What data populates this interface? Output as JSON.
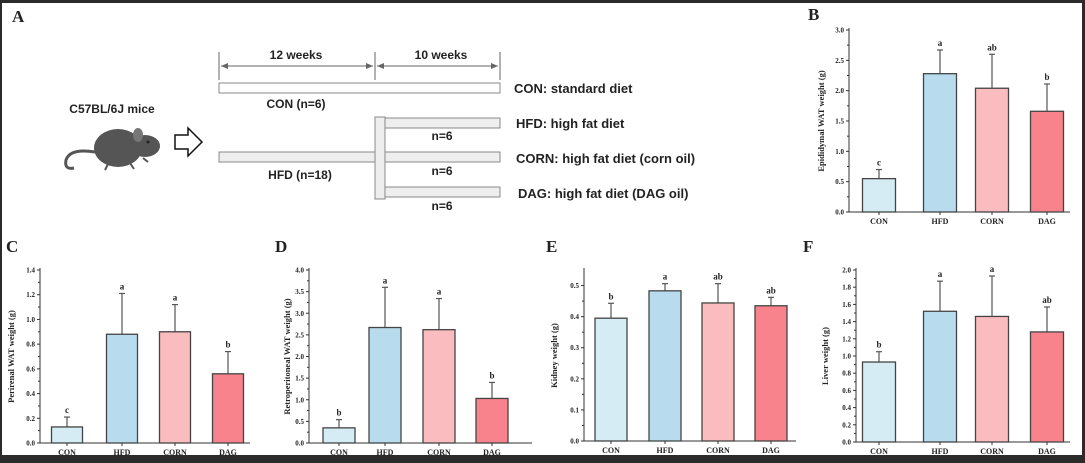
{
  "panel_a": {
    "letter": "A",
    "mice_label": "C57BL/6J mice",
    "period_1": "12 weeks",
    "period_2": "10 weeks",
    "con_group": "CON (n=6)",
    "hfd_group": "HFD (n=18)",
    "branch_n": [
      "n=6",
      "n=6",
      "n=6"
    ],
    "diets": [
      "CON: standard diet",
      "HFD: high fat diet",
      "CORN: high fat diet (corn oil)",
      "DAG: high fat diet (DAG oil)"
    ],
    "icons": [
      "mouse-icon",
      "hollow-arrow-right-icon"
    ]
  },
  "colors": {
    "CON": "#d6ecf5",
    "HFD": "#b8dced",
    "CORN": "#fbbcbf",
    "DAG": "#f8838c",
    "outline": "#444444"
  },
  "chart_data": [
    {
      "letter": "B",
      "type": "bar",
      "ylabel": "Epididymal WAT weight (g)",
      "categories": [
        "CON",
        "HFD",
        "CORN",
        "DAG"
      ],
      "values": [
        0.55,
        2.28,
        2.04,
        1.66
      ],
      "errors": [
        0.15,
        0.39,
        0.56,
        0.45
      ],
      "letters": [
        "c",
        "a",
        "ab",
        "b"
      ],
      "ylim": [
        0,
        3.0
      ],
      "yticks": [
        "0.0",
        "0.5",
        "1.0",
        "1.5",
        "2.0",
        "2.5",
        "3.0"
      ],
      "grid": false
    },
    {
      "letter": "C",
      "type": "bar",
      "ylabel": "Perirenal WAT weight (g)",
      "categories": [
        "CON",
        "HFD",
        "CORN",
        "DAG"
      ],
      "values": [
        0.13,
        0.88,
        0.9,
        0.56
      ],
      "errors": [
        0.08,
        0.33,
        0.22,
        0.18
      ],
      "letters": [
        "c",
        "a",
        "a",
        "b"
      ],
      "ylim": [
        0,
        1.4
      ],
      "yticks": [
        "0.0",
        "0.2",
        "0.4",
        "0.6",
        "0.8",
        "1.0",
        "1.2",
        "1.4"
      ],
      "grid": false
    },
    {
      "letter": "D",
      "type": "bar",
      "ylabel": "Retroperitoneal WAT weight (g)",
      "categories": [
        "CON",
        "HFD",
        "CORN",
        "DAG"
      ],
      "values": [
        0.35,
        2.67,
        2.62,
        1.03
      ],
      "errors": [
        0.19,
        0.93,
        0.72,
        0.37
      ],
      "letters": [
        "b",
        "a",
        "a",
        "b"
      ],
      "ylim": [
        0,
        4.0
      ],
      "yticks": [
        "0.0",
        "0.5",
        "1.0",
        "1.5",
        "2.0",
        "2.5",
        "3.0",
        "3.5",
        "4.0"
      ],
      "grid": false
    },
    {
      "letter": "E",
      "type": "bar",
      "ylabel": "Kidney weight (g)",
      "categories": [
        "CON",
        "HFD",
        "CORN",
        "DAG"
      ],
      "values": [
        0.395,
        0.483,
        0.444,
        0.435
      ],
      "errors": [
        0.048,
        0.023,
        0.062,
        0.027
      ],
      "letters": [
        "b",
        "a",
        "ab",
        "ab"
      ],
      "ylim": [
        0,
        0.55
      ],
      "yticks": [
        "0.0",
        "0.1",
        "0.2",
        "0.3",
        "0.4",
        "0.5"
      ],
      "grid": false
    },
    {
      "letter": "F",
      "type": "bar",
      "ylabel": "Liver weight (g)",
      "categories": [
        "CON",
        "HFD",
        "CORN",
        "DAG"
      ],
      "values": [
        0.93,
        1.52,
        1.46,
        1.28
      ],
      "errors": [
        0.12,
        0.35,
        0.47,
        0.29
      ],
      "letters": [
        "b",
        "a",
        "a",
        "ab"
      ],
      "ylim": [
        0,
        2.0
      ],
      "yticks": [
        "0.0",
        "0.2",
        "0.4",
        "0.6",
        "0.8",
        "1.0",
        "1.2",
        "1.4",
        "1.6",
        "1.8",
        "2.0"
      ],
      "grid": false
    }
  ]
}
